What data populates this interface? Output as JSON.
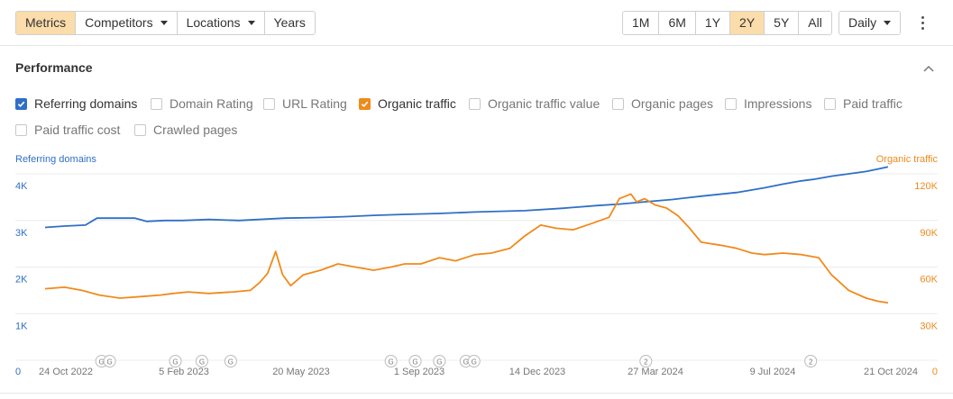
{
  "toolbar": {
    "left_group": [
      {
        "label": "Metrics",
        "active": true,
        "dropdown": false
      },
      {
        "label": "Competitors",
        "active": false,
        "dropdown": true
      },
      {
        "label": "Locations",
        "active": false,
        "dropdown": true
      },
      {
        "label": "Years",
        "active": false,
        "dropdown": false
      }
    ],
    "ranges": [
      {
        "label": "1M",
        "active": false
      },
      {
        "label": "6M",
        "active": false
      },
      {
        "label": "1Y",
        "active": false
      },
      {
        "label": "2Y",
        "active": true
      },
      {
        "label": "5Y",
        "active": false
      },
      {
        "label": "All",
        "active": false
      }
    ],
    "interval": "Daily",
    "more_icon": "kebab-icon"
  },
  "section": {
    "title": "Performance",
    "collapse_icon": "chevron-up-icon"
  },
  "metrics": [
    {
      "label": "Referring domains",
      "checked": true,
      "color": "#2f6fc7"
    },
    {
      "label": "Domain Rating",
      "checked": false
    },
    {
      "label": "URL Rating",
      "checked": false
    },
    {
      "label": "Organic traffic",
      "checked": true,
      "color": "#f08a1c"
    },
    {
      "label": "Organic traffic value",
      "checked": false
    },
    {
      "label": "Organic pages",
      "checked": false
    },
    {
      "label": "Impressions",
      "checked": false
    },
    {
      "label": "Paid traffic",
      "checked": false
    },
    {
      "label": "Paid traffic cost",
      "checked": false
    },
    {
      "label": "Crawled pages",
      "checked": false
    }
  ],
  "chart_data": {
    "type": "line",
    "left_axis_title": "Referring domains",
    "right_axis_title": "Organic traffic",
    "left_ticks": [
      "4K",
      "3K",
      "2K",
      "1K",
      "0"
    ],
    "right_ticks": [
      "120K",
      "90K",
      "60K",
      "30K",
      "0"
    ],
    "left_range": [
      0,
      4000
    ],
    "right_range": [
      0,
      120000
    ],
    "x_labels": [
      "24 Oct 2022",
      "5 Feb 2023",
      "20 May 2023",
      "1 Sep 2023",
      "14 Dec 2023",
      "27 Mar 2024",
      "9 Jul 2024",
      "21 Oct 2024"
    ],
    "x_range": [
      "2022-10-24",
      "2024-10-28"
    ],
    "grid": true,
    "series": [
      {
        "name": "Referring domains",
        "axis": "left",
        "color": "#2f6fc7",
        "x": [
          "2022-10-24",
          "2022-11-10",
          "2022-11-28",
          "2022-12-08",
          "2022-12-20",
          "2023-01-10",
          "2023-01-20",
          "2023-02-05",
          "2023-02-20",
          "2023-03-15",
          "2023-04-10",
          "2023-05-05",
          "2023-05-20",
          "2023-06-15",
          "2023-07-10",
          "2023-08-05",
          "2023-09-01",
          "2023-10-01",
          "2023-11-01",
          "2023-12-14",
          "2024-01-15",
          "2024-02-15",
          "2024-03-05",
          "2024-03-27",
          "2024-04-20",
          "2024-05-15",
          "2024-06-15",
          "2024-07-09",
          "2024-07-25",
          "2024-08-10",
          "2024-08-20",
          "2024-09-05",
          "2024-09-20",
          "2024-10-05",
          "2024-10-15",
          "2024-10-24"
        ],
        "values": [
          2850,
          2880,
          2900,
          3050,
          3050,
          3050,
          2980,
          3000,
          3000,
          3020,
          3000,
          3030,
          3050,
          3060,
          3080,
          3110,
          3130,
          3150,
          3180,
          3210,
          3260,
          3320,
          3350,
          3400,
          3450,
          3520,
          3600,
          3700,
          3780,
          3850,
          3880,
          3950,
          4000,
          4050,
          4100,
          4150
        ]
      },
      {
        "name": "Organic traffic",
        "axis": "right",
        "color": "#f08a1c",
        "x": [
          "2022-10-24",
          "2022-11-10",
          "2022-11-25",
          "2022-12-10",
          "2022-12-28",
          "2023-01-15",
          "2023-02-01",
          "2023-02-12",
          "2023-02-25",
          "2023-03-15",
          "2023-04-05",
          "2023-04-20",
          "2023-04-28",
          "2023-05-05",
          "2023-05-12",
          "2023-05-18",
          "2023-05-25",
          "2023-06-05",
          "2023-06-20",
          "2023-07-05",
          "2023-07-20",
          "2023-08-05",
          "2023-08-20",
          "2023-09-01",
          "2023-09-15",
          "2023-10-01",
          "2023-10-15",
          "2023-11-01",
          "2023-11-15",
          "2023-12-01",
          "2023-12-14",
          "2023-12-28",
          "2024-01-10",
          "2024-01-25",
          "2024-02-10",
          "2024-02-25",
          "2024-03-05",
          "2024-03-15",
          "2024-03-20",
          "2024-03-27",
          "2024-04-05",
          "2024-04-15",
          "2024-04-25",
          "2024-05-05",
          "2024-05-15",
          "2024-06-01",
          "2024-06-15",
          "2024-06-28",
          "2024-07-09",
          "2024-07-25",
          "2024-08-10",
          "2024-08-25",
          "2024-09-05",
          "2024-09-20",
          "2024-10-05",
          "2024-10-15",
          "2024-10-24"
        ],
        "values": [
          46000,
          47000,
          45000,
          42000,
          40000,
          41000,
          42000,
          43000,
          44000,
          43000,
          44000,
          45000,
          50000,
          56000,
          70000,
          55000,
          48000,
          55000,
          58000,
          62000,
          60000,
          58000,
          60000,
          62000,
          62000,
          66000,
          64000,
          68000,
          69000,
          72000,
          80000,
          87000,
          85000,
          84000,
          88000,
          92000,
          104000,
          107000,
          102000,
          104000,
          100000,
          98000,
          93000,
          85000,
          76000,
          74000,
          72000,
          69000,
          68000,
          69000,
          68000,
          66000,
          55000,
          45000,
          40000,
          38000,
          37000
        ]
      }
    ],
    "annotations": [
      {
        "label": "G",
        "x": "2022-12-12"
      },
      {
        "label": "G",
        "x": "2022-12-19"
      },
      {
        "label": "G",
        "x": "2023-02-14"
      },
      {
        "label": "G",
        "x": "2023-03-09"
      },
      {
        "label": "G",
        "x": "2023-04-03"
      },
      {
        "label": "G",
        "x": "2023-08-20"
      },
      {
        "label": "G",
        "x": "2023-09-10"
      },
      {
        "label": "G",
        "x": "2023-10-01"
      },
      {
        "label": "G",
        "x": "2023-10-24"
      },
      {
        "label": "G",
        "x": "2023-10-31"
      },
      {
        "label": "2",
        "x": "2024-03-28"
      },
      {
        "label": "2",
        "x": "2024-08-18"
      }
    ]
  }
}
